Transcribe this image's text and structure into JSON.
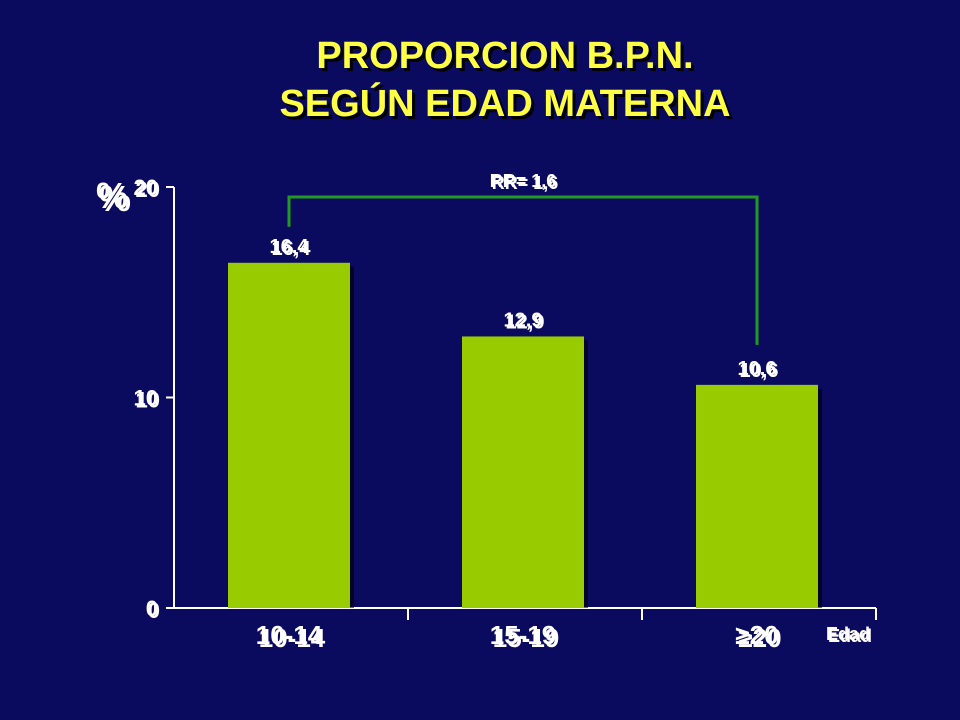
{
  "title_line1": "PROPORCION B.P.N.",
  "title_line2": "SEGÚN EDAD MATERNA",
  "chart_data": {
    "type": "bar",
    "categories": [
      "10-14",
      "15-19",
      "≥20"
    ],
    "values": [
      16.4,
      12.9,
      10.6
    ],
    "value_labels": [
      "16,4",
      "12,9",
      "10,6"
    ],
    "title": "PROPORCION B.P.N. SEGÚN EDAD MATERNA",
    "xlabel": "Edad",
    "ylabel": "%",
    "ylim": [
      0,
      20
    ],
    "yticks": [
      0,
      10,
      20
    ],
    "grid": false,
    "bar_color": "#99cc00",
    "annotation": {
      "text": "RR= 1,6",
      "from_category": "10-14",
      "to_category": "≥20",
      "color": "#33aa33"
    }
  },
  "colors": {
    "background": "#0a0a5e",
    "title": "#ffff44",
    "text": "#ffffff",
    "bar": "#99cc00",
    "bracket": "#229922"
  }
}
